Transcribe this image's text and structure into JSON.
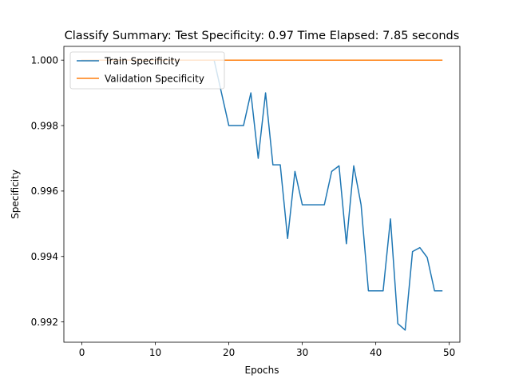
{
  "chart_data": {
    "type": "line",
    "title": "Classify Summary: Test Specificity: 0.97 Time Elapsed: 7.85 seconds",
    "xlabel": "Epochs",
    "ylabel": "Specificity",
    "xlim": [
      -2.45,
      51.45
    ],
    "ylim": [
      0.99138,
      1.00042
    ],
    "xticks": [
      0,
      10,
      20,
      30,
      40,
      50
    ],
    "yticks": [
      0.992,
      0.994,
      0.996,
      0.998,
      1.0
    ],
    "ytick_labels": [
      "0.992",
      "0.994",
      "0.996",
      "0.998",
      "1.000"
    ],
    "grid": false,
    "legend_location": "upper-left",
    "x": [
      0,
      1,
      2,
      3,
      4,
      5,
      6,
      7,
      8,
      9,
      10,
      11,
      12,
      13,
      14,
      15,
      16,
      17,
      18,
      19,
      20,
      21,
      22,
      23,
      24,
      25,
      26,
      27,
      28,
      29,
      30,
      31,
      32,
      33,
      34,
      35,
      36,
      37,
      38,
      39,
      40,
      41,
      42,
      43,
      44,
      45,
      46,
      47,
      48,
      49
    ],
    "series": [
      {
        "name": "Train Specificity",
        "color": "#1f77b4",
        "values": [
          1.0,
          1.0,
          1.0,
          1.0,
          1.0,
          1.0,
          1.0,
          1.0,
          1.0,
          1.0,
          1.0,
          1.0,
          1.0,
          1.0,
          1.0,
          1.0,
          1.0,
          1.0,
          1.0,
          0.999,
          0.998,
          0.998,
          0.998,
          0.999,
          0.997,
          0.999,
          0.9968,
          0.9968,
          0.99455,
          0.9966,
          0.99558,
          0.99558,
          0.99558,
          0.99558,
          0.9966,
          0.99677,
          0.99439,
          0.99677,
          0.99558,
          0.99295,
          0.99295,
          0.99295,
          0.99515,
          0.99195,
          0.99175,
          0.99415,
          0.99427,
          0.99397,
          0.99295,
          0.99295
        ]
      },
      {
        "name": "Validation Specificity",
        "color": "#ff7f0e",
        "values": [
          1.0,
          1.0,
          1.0,
          1.0,
          1.0,
          1.0,
          1.0,
          1.0,
          1.0,
          1.0,
          1.0,
          1.0,
          1.0,
          1.0,
          1.0,
          1.0,
          1.0,
          1.0,
          1.0,
          1.0,
          1.0,
          1.0,
          1.0,
          1.0,
          1.0,
          1.0,
          1.0,
          1.0,
          1.0,
          1.0,
          1.0,
          1.0,
          1.0,
          1.0,
          1.0,
          1.0,
          1.0,
          1.0,
          1.0,
          1.0,
          1.0,
          1.0,
          1.0,
          1.0,
          1.0,
          1.0,
          1.0,
          1.0,
          1.0,
          1.0
        ]
      }
    ]
  }
}
